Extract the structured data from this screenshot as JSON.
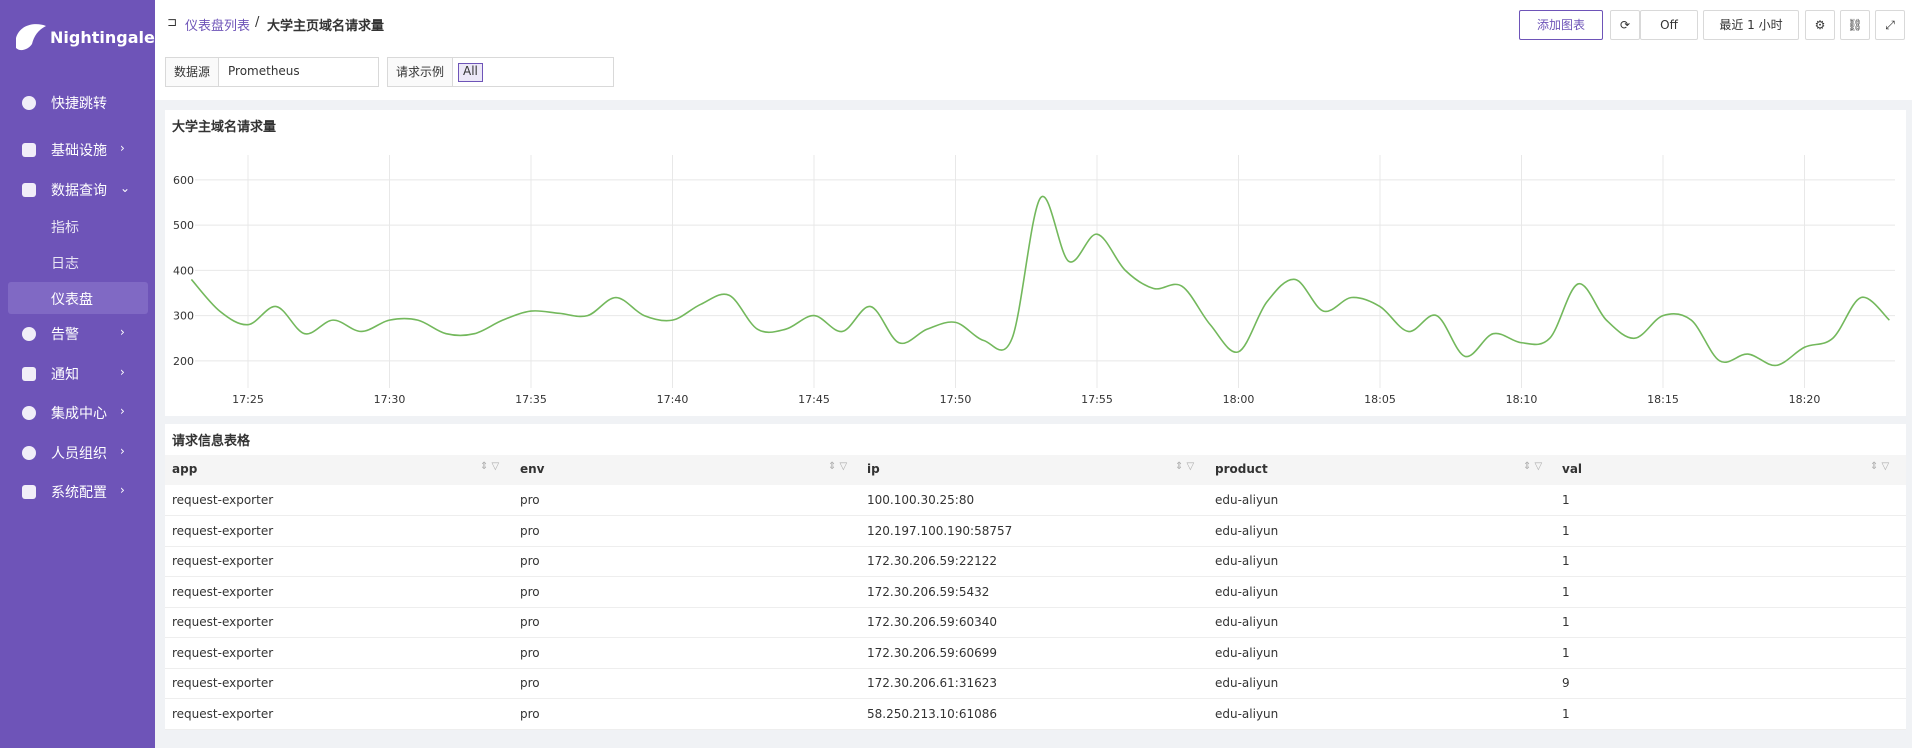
{
  "sidebar": {
    "logo": "Nightingale",
    "menu": [
      "快捷跳转",
      "基础设施",
      "数据查询",
      "告警",
      "通知",
      "集成中心",
      "人员组织",
      "系统配置"
    ],
    "submenu": [
      "指标",
      "日志",
      "仪表盘"
    ]
  },
  "header": {
    "breadcrumb": [
      "仪表盘列表",
      "大学主页域名请求量"
    ],
    "add_button": "添加图表",
    "refresh": "Off",
    "range": "最近 1 小时"
  },
  "filters": [
    {
      "label": "数据源",
      "value": "Prometheus"
    },
    {
      "label": "请求示例",
      "value": "All"
    }
  ],
  "chart_data": {
    "type": "line",
    "title": "大学主域名请求量",
    "color": "#73b85c",
    "grid": true,
    "x": [
      "17:23",
      "17:24",
      "17:25",
      "17:26",
      "17:27",
      "17:28",
      "17:29",
      "17:30",
      "17:31",
      "17:32",
      "17:33",
      "17:34",
      "17:35",
      "17:36",
      "17:37",
      "17:38",
      "17:39",
      "17:40",
      "17:41",
      "17:42",
      "17:43",
      "17:44",
      "17:45",
      "17:46",
      "17:47",
      "17:48",
      "17:49",
      "17:50",
      "17:51",
      "17:52",
      "17:53",
      "17:54",
      "17:55",
      "17:56",
      "17:57",
      "17:58",
      "17:59",
      "18:00",
      "18:01",
      "18:02",
      "18:03",
      "18:04",
      "18:05",
      "18:06",
      "18:07",
      "18:08",
      "18:09",
      "18:10",
      "18:11",
      "18:12",
      "18:13",
      "18:14",
      "18:15",
      "18:16",
      "18:17",
      "18:18",
      "18:19",
      "18:20",
      "18:21",
      "18:22",
      "18:23"
    ],
    "values": [
      380,
      310,
      280,
      320,
      260,
      290,
      265,
      290,
      290,
      260,
      260,
      290,
      310,
      305,
      300,
      340,
      300,
      290,
      325,
      345,
      270,
      270,
      300,
      265,
      320,
      240,
      270,
      285,
      245,
      250,
      560,
      420,
      480,
      400,
      360,
      365,
      280,
      220,
      330,
      380,
      310,
      340,
      320,
      265,
      300,
      210,
      260,
      240,
      250,
      370,
      290,
      250,
      300,
      290,
      200,
      215,
      190,
      230,
      250,
      340,
      290
    ],
    "xticks": [
      "17:25",
      "17:30",
      "17:35",
      "17:40",
      "17:45",
      "17:50",
      "17:55",
      "18:00",
      "18:05",
      "18:10",
      "18:15",
      "18:20"
    ],
    "ylim": [
      140,
      655
    ],
    "yticks": [
      200,
      300,
      400,
      500,
      600
    ]
  },
  "table": {
    "title": "请求信息表格",
    "columns": [
      "app",
      "env",
      "ip",
      "product",
      "val"
    ],
    "rows": [
      [
        "request-exporter",
        "pro",
        "100.100.30.25:80",
        "edu-aliyun",
        1
      ],
      [
        "request-exporter",
        "pro",
        "120.197.100.190:58757",
        "edu-aliyun",
        1
      ],
      [
        "request-exporter",
        "pro",
        "172.30.206.59:22122",
        "edu-aliyun",
        1
      ],
      [
        "request-exporter",
        "pro",
        "172.30.206.59:5432",
        "edu-aliyun",
        1
      ],
      [
        "request-exporter",
        "pro",
        "172.30.206.59:60340",
        "edu-aliyun",
        1
      ],
      [
        "request-exporter",
        "pro",
        "172.30.206.59:60699",
        "edu-aliyun",
        1
      ],
      [
        "request-exporter",
        "pro",
        "172.30.206.61:31623",
        "edu-aliyun",
        9
      ],
      [
        "request-exporter",
        "pro",
        "58.250.213.10:61086",
        "edu-aliyun",
        1
      ]
    ]
  }
}
